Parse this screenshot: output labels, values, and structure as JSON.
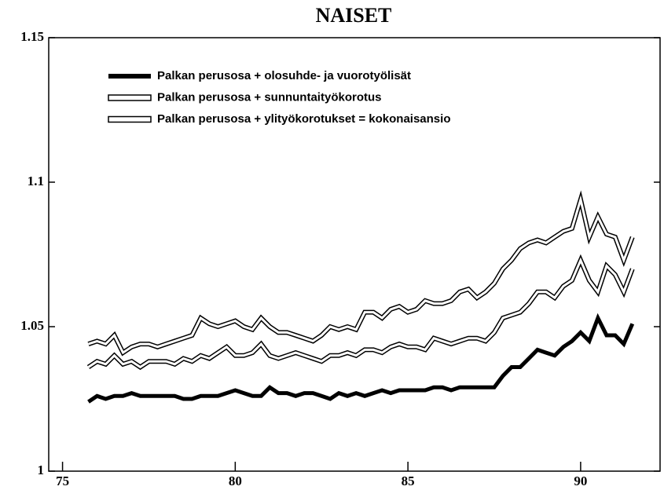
{
  "chart_data": {
    "type": "line",
    "title": "NAISET",
    "x": [
      75.75,
      76,
      76.25,
      76.5,
      76.75,
      77,
      77.25,
      77.5,
      77.75,
      78,
      78.25,
      78.5,
      78.75,
      79,
      79.25,
      79.5,
      79.75,
      80,
      80.25,
      80.5,
      80.75,
      81,
      81.25,
      81.5,
      81.75,
      82,
      82.25,
      82.5,
      82.75,
      83,
      83.25,
      83.5,
      83.75,
      84,
      84.25,
      84.5,
      84.75,
      85,
      85.25,
      85.5,
      85.75,
      86,
      86.25,
      86.5,
      86.75,
      87,
      87.25,
      87.5,
      87.75,
      88,
      88.25,
      88.5,
      88.75,
      89,
      89.25,
      89.5,
      89.75,
      90,
      90.25,
      90.5,
      90.75,
      91,
      91.25,
      91.5
    ],
    "series": [
      {
        "name": "Palkan perusosa + olosuhde- ja vuorotyölisät",
        "color": "#000000",
        "style": "thick",
        "values": [
          1.024,
          1.026,
          1.025,
          1.026,
          1.026,
          1.027,
          1.026,
          1.026,
          1.026,
          1.026,
          1.026,
          1.025,
          1.025,
          1.026,
          1.026,
          1.026,
          1.027,
          1.028,
          1.027,
          1.026,
          1.026,
          1.029,
          1.027,
          1.027,
          1.026,
          1.027,
          1.027,
          1.026,
          1.025,
          1.027,
          1.026,
          1.027,
          1.026,
          1.027,
          1.028,
          1.027,
          1.028,
          1.028,
          1.028,
          1.028,
          1.029,
          1.029,
          1.028,
          1.029,
          1.029,
          1.029,
          1.029,
          1.029,
          1.033,
          1.036,
          1.036,
          1.039,
          1.042,
          1.041,
          1.04,
          1.043,
          1.045,
          1.048,
          1.045,
          1.053,
          1.047,
          1.047,
          1.044,
          1.051
        ]
      },
      {
        "name": "Palkan perusosa + sunnuntaityökorotus",
        "color": "#000000",
        "style": "outline",
        "values": [
          1.036,
          1.038,
          1.037,
          1.04,
          1.037,
          1.038,
          1.036,
          1.038,
          1.038,
          1.038,
          1.037,
          1.039,
          1.038,
          1.04,
          1.039,
          1.041,
          1.043,
          1.04,
          1.04,
          1.041,
          1.044,
          1.04,
          1.039,
          1.04,
          1.041,
          1.04,
          1.039,
          1.038,
          1.04,
          1.04,
          1.041,
          1.04,
          1.042,
          1.042,
          1.041,
          1.043,
          1.044,
          1.043,
          1.043,
          1.042,
          1.046,
          1.045,
          1.044,
          1.045,
          1.046,
          1.046,
          1.045,
          1.048,
          1.053,
          1.054,
          1.055,
          1.058,
          1.062,
          1.062,
          1.06,
          1.064,
          1.066,
          1.073,
          1.066,
          1.062,
          1.071,
          1.068,
          1.062,
          1.07
        ]
      },
      {
        "name": "Palkan perusosa + ylityökorotukset = kokonaisansio",
        "color": "#000000",
        "style": "outline",
        "values": [
          1.044,
          1.045,
          1.044,
          1.047,
          1.041,
          1.043,
          1.044,
          1.044,
          1.043,
          1.044,
          1.045,
          1.046,
          1.047,
          1.053,
          1.051,
          1.05,
          1.051,
          1.052,
          1.05,
          1.049,
          1.053,
          1.05,
          1.048,
          1.048,
          1.047,
          1.046,
          1.045,
          1.047,
          1.05,
          1.049,
          1.05,
          1.049,
          1.055,
          1.055,
          1.053,
          1.056,
          1.057,
          1.055,
          1.056,
          1.059,
          1.058,
          1.058,
          1.059,
          1.062,
          1.063,
          1.06,
          1.062,
          1.065,
          1.07,
          1.073,
          1.077,
          1.079,
          1.08,
          1.079,
          1.081,
          1.083,
          1.084,
          1.094,
          1.081,
          1.088,
          1.082,
          1.081,
          1.073,
          1.081
        ]
      }
    ],
    "xlim": [
      74.6,
      92.3
    ],
    "xticks": [
      75,
      80,
      85,
      90
    ],
    "ylim": [
      1,
      1.15
    ],
    "yticks": [
      1,
      1.05,
      1.1,
      1.15
    ],
    "grid": false,
    "legend": "upper left"
  }
}
